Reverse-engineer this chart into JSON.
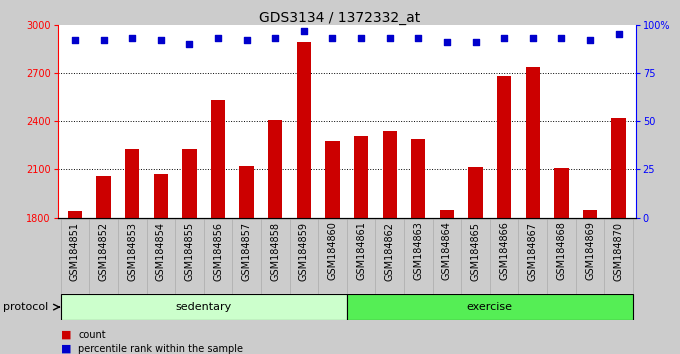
{
  "title": "GDS3134 / 1372332_at",
  "categories": [
    "GSM184851",
    "GSM184852",
    "GSM184853",
    "GSM184854",
    "GSM184855",
    "GSM184856",
    "GSM184857",
    "GSM184858",
    "GSM184859",
    "GSM184860",
    "GSM184861",
    "GSM184862",
    "GSM184863",
    "GSM184864",
    "GSM184865",
    "GSM184866",
    "GSM184867",
    "GSM184868",
    "GSM184869",
    "GSM184870"
  ],
  "bar_values": [
    1840,
    2060,
    2230,
    2070,
    2230,
    2530,
    2120,
    2410,
    2890,
    2280,
    2310,
    2340,
    2290,
    1850,
    2115,
    2680,
    2740,
    2110,
    1850,
    2420
  ],
  "percentile_values": [
    92,
    92,
    93,
    92,
    90,
    93,
    92,
    93,
    97,
    93,
    93,
    93,
    93,
    91,
    91,
    93,
    93,
    93,
    92,
    95
  ],
  "bar_color": "#cc0000",
  "dot_color": "#0000cc",
  "ylim_left": [
    1800,
    3000
  ],
  "ylim_right": [
    0,
    100
  ],
  "yticks_left": [
    1800,
    2100,
    2400,
    2700,
    3000
  ],
  "ytick_labels_left": [
    "1800",
    "2100",
    "2400",
    "2700",
    "3000"
  ],
  "yticks_right": [
    0,
    25,
    50,
    75,
    100
  ],
  "ytick_labels_right": [
    "0",
    "25",
    "50",
    "75",
    "100%"
  ],
  "sedentary_color": "#ccffcc",
  "exercise_color": "#55ee55",
  "protocol_label": "protocol",
  "sedentary_label": "sedentary",
  "exercise_label": "exercise",
  "legend_count": "count",
  "legend_percentile": "percentile rank within the sample",
  "background_color": "#cccccc",
  "plot_bg_color": "#ffffff",
  "xtick_bg_color": "#cccccc",
  "title_fontsize": 10,
  "tick_fontsize": 7,
  "label_fontsize": 8,
  "bar_width": 0.5,
  "n_sedentary": 10,
  "n_exercise": 10
}
